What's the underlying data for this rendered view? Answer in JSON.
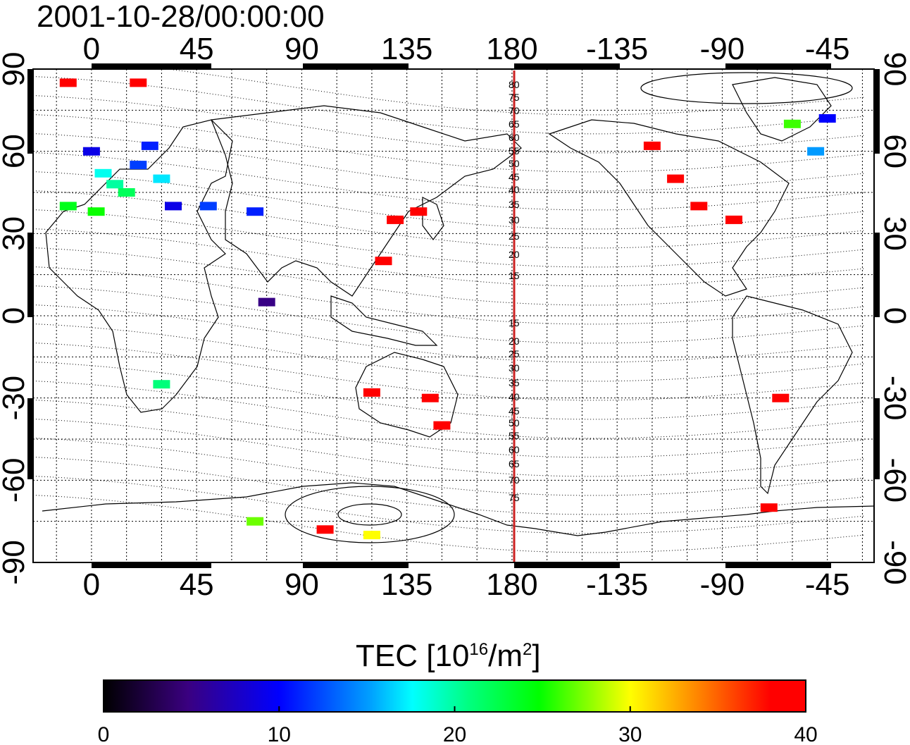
{
  "timestamp": "2001-10-28/00:00:00",
  "colorbar": {
    "title": "TEC  [10",
    "title_exp": "16",
    "title_unit": "/m",
    "title_exp2": "2",
    "title_close": "]",
    "ticks": [
      "0",
      "10",
      "20",
      "30",
      "40"
    ],
    "min": 0,
    "max": 40
  },
  "axes": {
    "top_lon_labels": [
      "0",
      "45",
      "90",
      "135",
      "180",
      "-135",
      "-90",
      "-45"
    ],
    "bottom_lon_labels": [
      "0",
      "45",
      "90",
      "135",
      "180",
      "-135",
      "-90",
      "-45"
    ],
    "left_lat_labels": [
      "90",
      "60",
      "30",
      "0",
      "-30",
      "-60",
      "-90"
    ],
    "right_lat_labels": [
      "90",
      "60",
      "30",
      "0",
      "-30",
      "-60",
      "-90"
    ],
    "lon_range_east": [
      -25,
      335
    ],
    "lat_range": [
      -90,
      90
    ],
    "grid": "dotted, 15 degree spacing"
  },
  "contour_labels": [
    "80",
    "75",
    "70",
    "65",
    "60",
    "55",
    "50",
    "45",
    "40",
    "35",
    "30",
    "25",
    "20",
    "15",
    "15",
    "20",
    "25",
    "30",
    "35",
    "40",
    "45",
    "50",
    "55",
    "60",
    "65",
    "70",
    "75"
  ],
  "colors": {
    "high_tec": "#ff0000",
    "vertical_line": "#cc2222",
    "background": "#ffffff"
  },
  "tec_points": [
    {
      "lon": 10,
      "lat": 48,
      "tec": 20
    },
    {
      "lon": 5,
      "lat": 52,
      "tec": 18
    },
    {
      "lon": 15,
      "lat": 45,
      "tec": 22
    },
    {
      "lon": 20,
      "lat": 55,
      "tec": 12
    },
    {
      "lon": 25,
      "lat": 62,
      "tec": 11
    },
    {
      "lon": 0,
      "lat": 60,
      "tec": 9
    },
    {
      "lon": 30,
      "lat": 50,
      "tec": 17
    },
    {
      "lon": 2,
      "lat": 38,
      "tec": 25
    },
    {
      "lon": -10,
      "lat": 40,
      "tec": 24
    },
    {
      "lon": 35,
      "lat": 40,
      "tec": 9
    },
    {
      "lon": 50,
      "lat": 40,
      "tec": 12
    },
    {
      "lon": 70,
      "lat": 38,
      "tec": 11
    },
    {
      "lon": 75,
      "lat": 5,
      "tec": 5
    },
    {
      "lon": 30,
      "lat": -25,
      "tec": 21
    },
    {
      "lon": 20,
      "lat": 85,
      "tec": 40
    },
    {
      "lon": -10,
      "lat": 85,
      "tec": 40
    },
    {
      "lon": 130,
      "lat": 35,
      "tec": 40
    },
    {
      "lon": 140,
      "lat": 38,
      "tec": 40
    },
    {
      "lon": 125,
      "lat": 20,
      "tec": 40
    },
    {
      "lon": 145,
      "lat": -30,
      "tec": 40
    },
    {
      "lon": 120,
      "lat": -28,
      "tec": 40
    },
    {
      "lon": 150,
      "lat": -40,
      "tec": 40
    },
    {
      "lon": -100,
      "lat": 40,
      "tec": 40
    },
    {
      "lon": -85,
      "lat": 35,
      "tec": 40
    },
    {
      "lon": -110,
      "lat": 50,
      "tec": 40
    },
    {
      "lon": -120,
      "lat": 62,
      "tec": 40
    },
    {
      "lon": -65,
      "lat": -30,
      "tec": 40
    },
    {
      "lon": -70,
      "lat": -70,
      "tec": 40
    },
    {
      "lon": 100,
      "lat": -78,
      "tec": 38
    },
    {
      "lon": 120,
      "lat": -80,
      "tec": 30
    },
    {
      "lon": 70,
      "lat": -75,
      "tec": 27
    },
    {
      "lon": -60,
      "lat": 70,
      "tec": 26
    },
    {
      "lon": -50,
      "lat": 60,
      "tec": 15
    },
    {
      "lon": -45,
      "lat": 72,
      "tec": 10
    }
  ]
}
